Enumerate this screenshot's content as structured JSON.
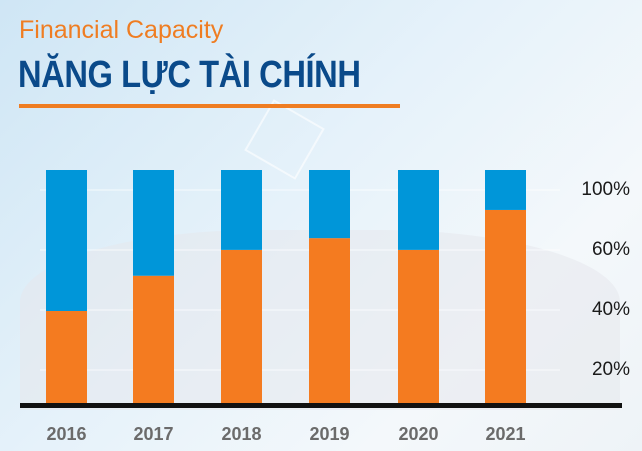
{
  "header": {
    "subtitle": "Financial Capacity",
    "title": "NĂNG LỰC TÀI CHÍNH"
  },
  "chart_data": {
    "type": "bar",
    "stacked": true,
    "categories": [
      "2016",
      "2017",
      "2018",
      "2019",
      "2020",
      "2021"
    ],
    "series": [
      {
        "values": [
          40,
          55,
          66,
          71,
          66,
          83
        ],
        "color": "#f47b20"
      },
      {
        "values": [
          60,
          45,
          34,
          29,
          34,
          17
        ],
        "color": "#0096d9"
      }
    ],
    "y_tick_labels": [
      "100%",
      "60%",
      "40%",
      "20%"
    ],
    "ylim": [
      0,
      100
    ],
    "grid": true,
    "legend": "none",
    "axis_color": "#111111"
  }
}
